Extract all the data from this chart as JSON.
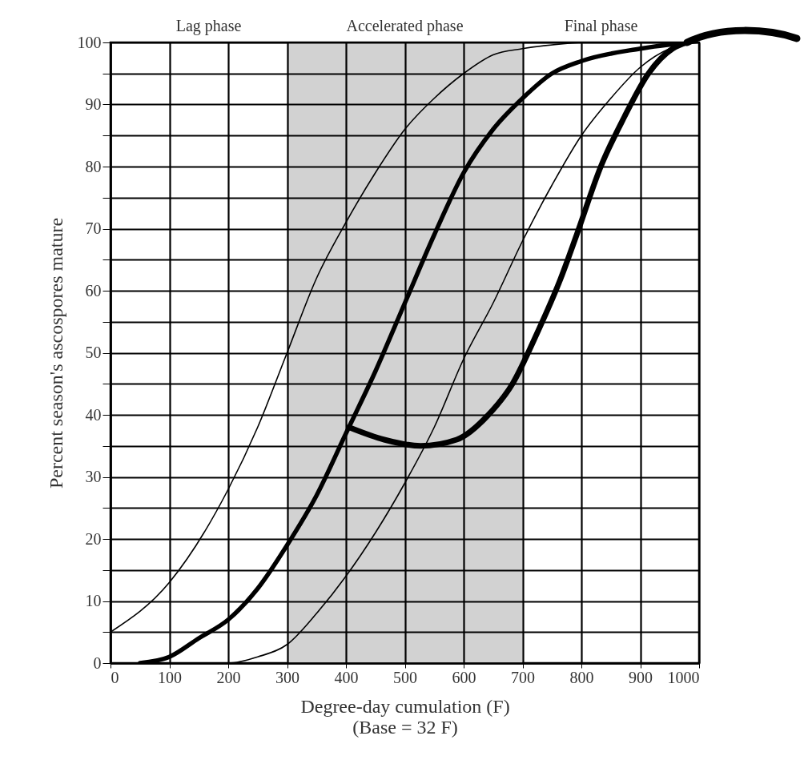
{
  "chart_data": {
    "type": "line",
    "xlabel": "Degree-day cumulation (F)\n(Base = 32 F)",
    "ylabel": "Percent season's ascospores mature",
    "xlim": [
      0,
      1000
    ],
    "xticks": [
      0,
      100,
      200,
      300,
      400,
      500,
      600,
      700,
      800,
      900,
      1000
    ],
    "ylim": [
      0,
      100
    ],
    "yticks": [
      0,
      {
        "value": 5,
        "label": null
      },
      10,
      {
        "value": 15,
        "label": null
      },
      20,
      {
        "value": 25,
        "label": null
      },
      30,
      {
        "value": 35,
        "label": null
      },
      40,
      {
        "value": 45,
        "label": null
      },
      50,
      {
        "value": 55,
        "label": null
      },
      60,
      {
        "value": 65,
        "label": null
      },
      70,
      {
        "value": 75,
        "label": null
      },
      80,
      {
        "value": 85,
        "label": null
      },
      90,
      {
        "value": 95,
        "label": null
      },
      100
    ],
    "grid": true,
    "bands": [
      {
        "axis": "x",
        "from": 300,
        "to": 700,
        "color": "#d2d2d2"
      }
    ],
    "annotations": [
      "Lag phase",
      "Accelerated phase",
      "Final phase"
    ],
    "series": [
      {
        "color": "#000000",
        "x": [
          0,
          100,
          200,
          250,
          300,
          350,
          400,
          450,
          500,
          550,
          600,
          650,
          700,
          800
        ],
        "values": [
          5,
          13,
          28,
          38,
          50,
          62,
          71,
          79,
          86,
          91,
          95,
          98,
          99,
          100
        ]
      },
      {
        "color": "#000000",
        "x": [
          50,
          100,
          150,
          200,
          250,
          300,
          350,
          400,
          450,
          500,
          550,
          600,
          650,
          700,
          750,
          800,
          900,
          980
        ],
        "values": [
          0,
          1,
          4,
          7,
          12,
          19,
          27,
          37,
          47,
          58,
          69,
          79,
          86,
          91,
          95,
          97,
          99,
          100
        ]
      },
      {
        "color": "#000000",
        "x": [
          100,
          200,
          250,
          300,
          350,
          400,
          450,
          500,
          550,
          600,
          650,
          700,
          750,
          800,
          850,
          900,
          950,
          1000
        ],
        "values": [
          0,
          0,
          1,
          3,
          8,
          14,
          21,
          29,
          38,
          49,
          58,
          68,
          77,
          85,
          91,
          96,
          99,
          100
        ]
      },
      {
        "color": "#000000",
        "x": [
          405,
          465,
          527,
          588,
          642,
          683,
          724,
          765,
          792,
          833,
          873,
          914,
          955,
          980
        ],
        "values": [
          38,
          36,
          35,
          36,
          40,
          45,
          53,
          62,
          69,
          80,
          88,
          95,
          99,
          100
        ]
      }
    ]
  }
}
